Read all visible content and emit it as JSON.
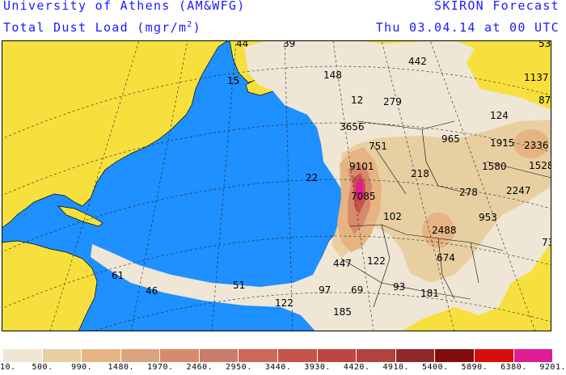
{
  "header": {
    "institution": "University of Athens (AM&WFG)",
    "product": "SKIRON Forecast",
    "variable_main": "Total Dust Load (mgr/m",
    "variable_sup": "2",
    "variable_end": ")",
    "valid_time": "Thu 03.04.14 at 00 UTC"
  },
  "map_labels": [
    "44",
    "39",
    "53",
    "15",
    "148",
    "442",
    "1137",
    "87",
    "12",
    "279",
    "3656",
    "124",
    "2336",
    "751",
    "965",
    "1915",
    "1528",
    "9101",
    "1580",
    "22",
    "218",
    "2247",
    "7085",
    "278",
    "102",
    "953",
    "2488",
    "73",
    "674",
    "447",
    "122",
    "61",
    "46",
    "51",
    "122",
    "97",
    "69",
    "93",
    "181",
    "185"
  ],
  "legend": {
    "levels": [
      "10.",
      "500.",
      "990.",
      "1480.",
      "1970.",
      "2460.",
      "2950.",
      "3440.",
      "3930.",
      "4420.",
      "4910.",
      "5400.",
      "5890.",
      "6380.",
      "9201."
    ],
    "colors": [
      "#efe6d6",
      "#e8cfa2",
      "#e6b483",
      "#d9a47e",
      "#d78a6b",
      "#ca7b6a",
      "#cd6958",
      "#c85348",
      "#bf4543",
      "#b1423d",
      "#8f2a2c",
      "#830c0c",
      "#d60e0e",
      "#df1c94"
    ]
  },
  "palette": {
    "land": "#f7e03d",
    "ocean": "#1e90ff",
    "header_text": "#1a1aff"
  }
}
